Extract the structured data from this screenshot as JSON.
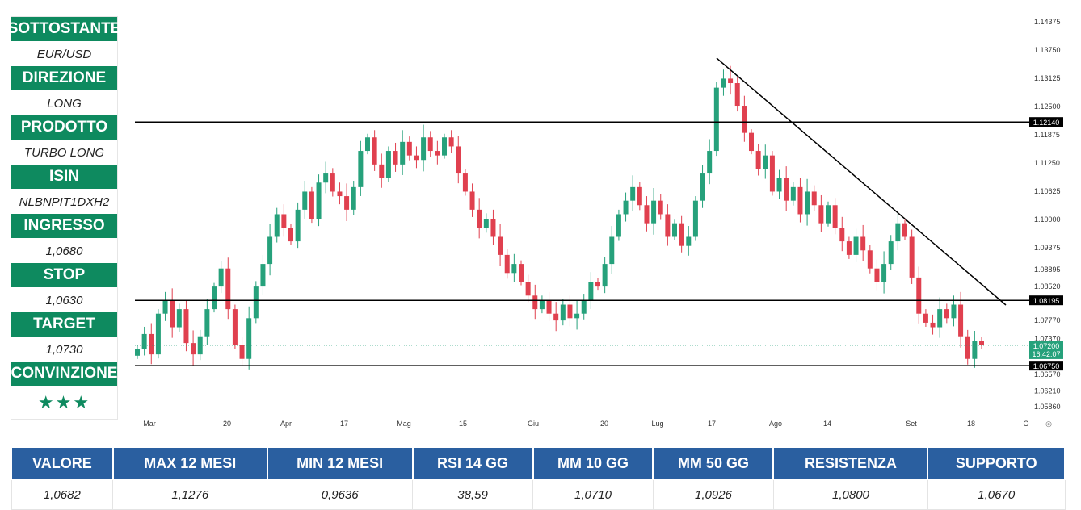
{
  "panel": [
    {
      "label": "SOTTOSTANTE",
      "value": "EUR/USD"
    },
    {
      "label": "DIREZIONE",
      "value": "LONG"
    },
    {
      "label": "PRODOTTO",
      "value": "TURBO LONG"
    },
    {
      "label": "ISIN",
      "value": "NLBNPIT1DXH2"
    },
    {
      "label": "INGRESSO",
      "value": "1,0680"
    },
    {
      "label": "STOP",
      "value": "1,0630"
    },
    {
      "label": "TARGET",
      "value": "1,0730"
    },
    {
      "label": "CONVINZIONE",
      "value": "★★★"
    }
  ],
  "table": {
    "headers": [
      "VALORE",
      "MAX 12 MESI",
      "MIN 12 MESI",
      "RSI 14 GG",
      "MM 10 GG",
      "MM 50 GG",
      "RESISTENZA",
      "SUPPORTO"
    ],
    "values": [
      "1,0682",
      "1,1276",
      "0,9636",
      "38,59",
      "1,0710",
      "1,0926",
      "1,0800",
      "1,0670"
    ]
  },
  "chart_data": {
    "type": "candlestick",
    "title": "EUR/USD",
    "x_ticks": [
      "Mar",
      "20",
      "Apr",
      "17",
      "Mag",
      "15",
      "Giu",
      "20",
      "Lug",
      "17",
      "Ago",
      "14",
      "Set",
      "18",
      "O"
    ],
    "y_ticks": [
      "1.14375",
      "1.13750",
      "1.13125",
      "1.12500",
      "1.11875",
      "1.11250",
      "1.10625",
      "1.10000",
      "1.09375",
      "1.08895",
      "1.08520",
      "1.07770",
      "1.07370",
      "1.06570",
      "1.06210",
      "1.05860"
    ],
    "ylim": [
      1.056,
      1.146
    ],
    "levels": [
      "1.12140",
      "1.08195",
      "1.06750"
    ],
    "current_price": "1.07200",
    "current_time": "16:42:07",
    "colors": {
      "up": "#26a17b",
      "down": "#e0404f",
      "level": "#000000"
    },
    "closes": [
      1.0712,
      1.0745,
      1.07,
      1.079,
      1.082,
      1.076,
      1.08,
      1.0725,
      1.07,
      1.074,
      1.08,
      1.085,
      1.089,
      1.08,
      1.072,
      1.069,
      1.078,
      1.085,
      1.09,
      1.096,
      1.101,
      1.098,
      1.095,
      1.102,
      1.106,
      1.1,
      1.108,
      1.11,
      1.106,
      1.105,
      1.102,
      1.107,
      1.115,
      1.118,
      1.112,
      1.109,
      1.115,
      1.112,
      1.117,
      1.114,
      1.113,
      1.118,
      1.115,
      1.114,
      1.118,
      1.116,
      1.11,
      1.106,
      1.102,
      1.098,
      1.1,
      1.096,
      1.092,
      1.088,
      1.09,
      1.086,
      1.083,
      1.08,
      1.082,
      1.079,
      1.0775,
      1.081,
      1.078,
      1.079,
      1.082,
      1.086,
      1.085,
      1.09,
      1.096,
      1.101,
      1.104,
      1.107,
      1.103,
      1.099,
      1.104,
      1.101,
      1.096,
      1.099,
      1.094,
      1.096,
      1.104,
      1.11,
      1.115,
      1.129,
      1.131,
      1.13,
      1.125,
      1.119,
      1.115,
      1.111,
      1.114,
      1.106,
      1.109,
      1.104,
      1.107,
      1.101,
      1.106,
      1.103,
      1.099,
      1.103,
      1.098,
      1.095,
      1.092,
      1.096,
      1.093,
      1.089,
      1.086,
      1.09,
      1.095,
      1.099,
      1.096,
      1.087,
      1.079,
      1.077,
      1.076,
      1.08,
      1.078,
      1.081,
      1.074,
      1.069,
      1.073,
      1.072
    ]
  }
}
